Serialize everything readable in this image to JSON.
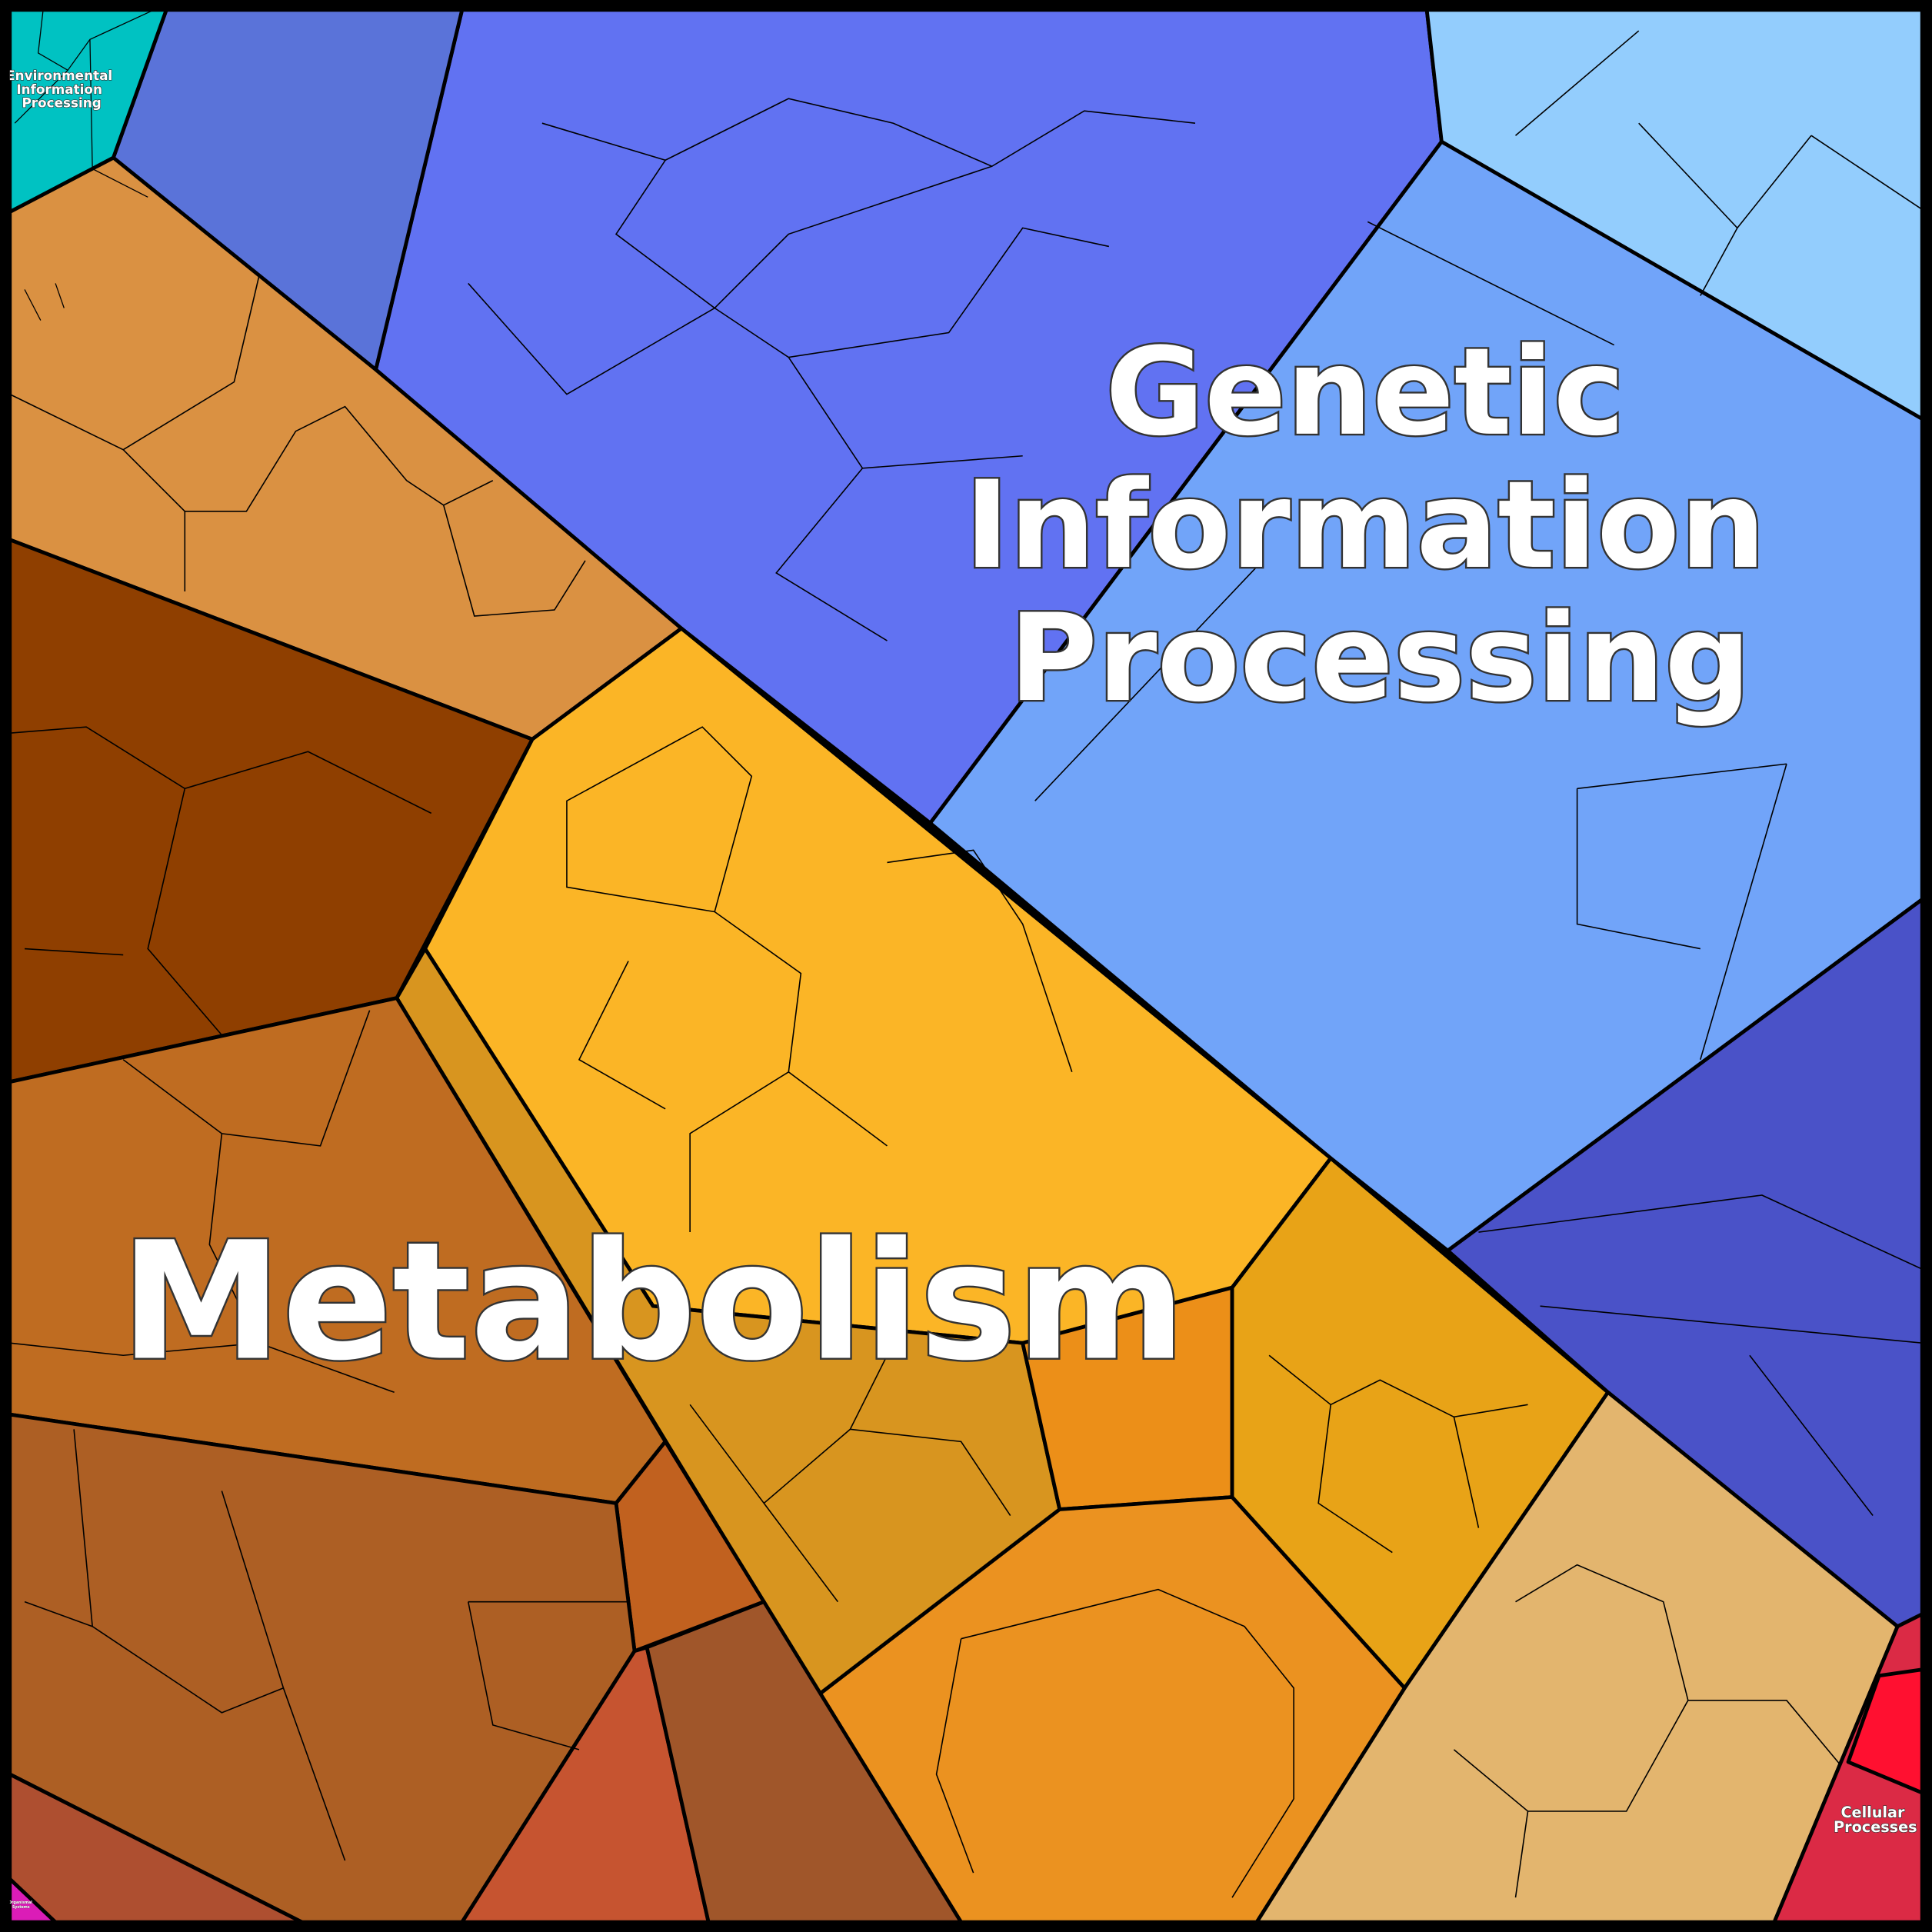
{
  "categories": [
    {
      "id": "genetic",
      "label_lines": [
        "Genetic",
        "Information",
        "Processing"
      ],
      "colors": [
        "#6172f2",
        "#5a73d9",
        "#93cdfd",
        "#71a4f9",
        "#4a52c8"
      ]
    },
    {
      "id": "metabolism",
      "label": "Metabolism",
      "colors": [
        "#da9142",
        "#8f3f00",
        "#fbb526",
        "#d8951f",
        "#eb9220",
        "#e8a317",
        "#e3b56e",
        "#bf6c21",
        "#ad5f24",
        "#c65430",
        "#a0562a",
        "#ae4f30",
        "#ec8f18",
        "#c1611f"
      ]
    },
    {
      "id": "environmental",
      "label_lines": [
        "Environmental",
        "Information",
        "Processing"
      ],
      "color": "#00c2c2"
    },
    {
      "id": "cellular",
      "label_lines": [
        "Cellular",
        "Processes"
      ],
      "colors": [
        "#db2a45",
        "#ff1030"
      ]
    },
    {
      "id": "organismal",
      "label_lines": [
        "Organismal",
        "Systems"
      ],
      "color": "#db1cb7"
    }
  ]
}
